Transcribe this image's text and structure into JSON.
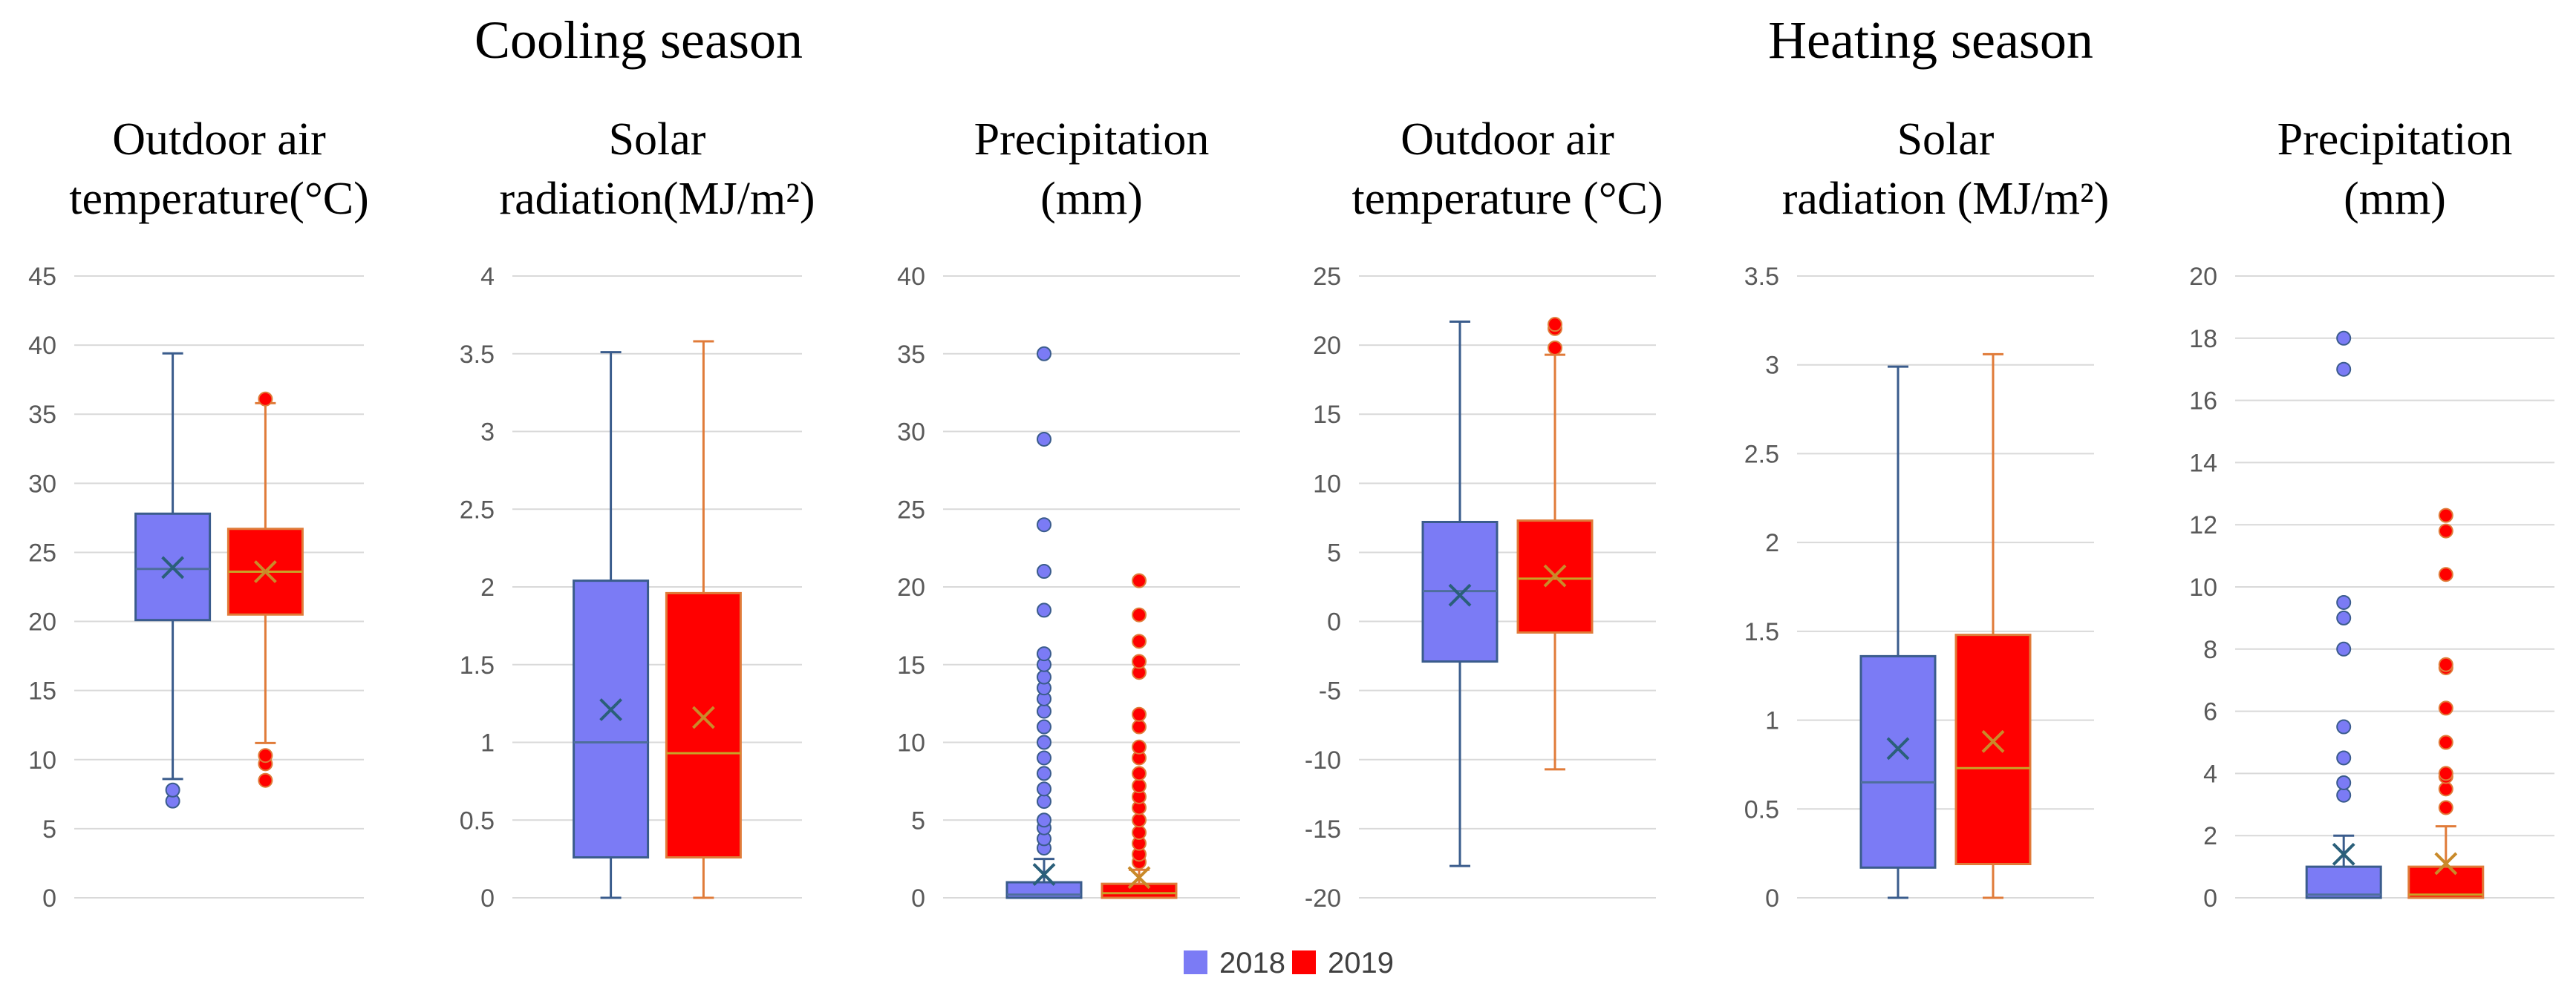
{
  "season_titles": [
    "Cooling season",
    "Heating season"
  ],
  "legend": [
    {
      "label": "2018",
      "color": "#7b7bf5"
    },
    {
      "label": "2019",
      "color": "#ff0000"
    }
  ],
  "colors": {
    "fill_2018": "#7b7bf5",
    "stroke_2018": "#3a5c8c",
    "fill_2019": "#ff0000",
    "stroke_2019": "#e07b39",
    "median_2018": "#4e6e9c",
    "median_2019": "#c9a227"
  },
  "chart_data": [
    {
      "type": "box",
      "season": "Cooling season",
      "title_lines": [
        "Outdoor air",
        "temperature(°C)"
      ],
      "ylim": [
        0,
        45
      ],
      "ticks": [
        0,
        5,
        10,
        15,
        20,
        25,
        30,
        35,
        40,
        45
      ],
      "tick_labels": [
        "0",
        "5",
        "10",
        "15",
        "20",
        "25",
        "30",
        "35",
        "40",
        "45"
      ],
      "series": [
        {
          "name": "2018",
          "whisker_low": 8.6,
          "q1": 20.1,
          "median": 23.8,
          "q3": 27.8,
          "whisker_high": 39.4,
          "mean": 23.9,
          "outliers": [
            7.0,
            7.8
          ]
        },
        {
          "name": "2019",
          "whisker_low": 11.2,
          "q1": 20.5,
          "median": 23.6,
          "q3": 26.7,
          "whisker_high": 35.8,
          "mean": 23.6,
          "outliers": [
            8.5,
            9.7,
            10.3,
            36.1
          ]
        }
      ]
    },
    {
      "type": "box",
      "season": "Cooling season",
      "title_lines": [
        "Solar",
        "radiation(MJ/m²)"
      ],
      "ylim": [
        0,
        4
      ],
      "ticks": [
        0,
        0.5,
        1,
        1.5,
        2,
        2.5,
        3,
        3.5,
        4
      ],
      "tick_labels": [
        "0",
        "0.5",
        "1",
        "1.5",
        "2",
        "2.5",
        "3",
        "3.5",
        "4"
      ],
      "series": [
        {
          "name": "2018",
          "whisker_low": 0,
          "q1": 0.26,
          "median": 1.0,
          "q3": 2.04,
          "whisker_high": 3.51,
          "mean": 1.21,
          "outliers": []
        },
        {
          "name": "2019",
          "whisker_low": 0,
          "q1": 0.26,
          "median": 0.93,
          "q3": 1.96,
          "whisker_high": 3.58,
          "mean": 1.16,
          "outliers": []
        }
      ]
    },
    {
      "type": "box",
      "season": "Cooling season",
      "title_lines": [
        "Precipitation",
        "(mm)"
      ],
      "ylim": [
        0,
        40
      ],
      "ticks": [
        0,
        5,
        10,
        15,
        20,
        25,
        30,
        35,
        40
      ],
      "tick_labels": [
        "0",
        "5",
        "10",
        "15",
        "20",
        "25",
        "30",
        "35",
        "40"
      ],
      "series": [
        {
          "name": "2018",
          "whisker_low": 0,
          "q1": 0,
          "median": 0.2,
          "q3": 1.0,
          "whisker_high": 2.5,
          "mean": 1.5,
          "outliers": [
            3.2,
            3.8,
            4.5,
            5.0,
            6.2,
            7.0,
            8.0,
            9.0,
            10.0,
            11.0,
            12.0,
            12.8,
            13.5,
            14.2,
            15.0,
            15.7,
            18.5,
            21.0,
            24.0,
            29.5,
            35.0
          ]
        },
        {
          "name": "2019",
          "whisker_low": 0,
          "q1": 0,
          "median": 0.3,
          "q3": 0.9,
          "whisker_high": 1.8,
          "mean": 1.3,
          "outliers": [
            2.3,
            2.8,
            3.5,
            4.2,
            5.0,
            5.8,
            6.5,
            7.2,
            8.0,
            9.0,
            9.7,
            11.0,
            11.8,
            14.5,
            15.2,
            16.5,
            18.2,
            20.4
          ]
        }
      ]
    },
    {
      "type": "box",
      "season": "Heating season",
      "title_lines": [
        "Outdoor air",
        "temperature (°C)"
      ],
      "ylim": [
        -20,
        25
      ],
      "ticks": [
        -20,
        -15,
        -10,
        -5,
        0,
        5,
        10,
        15,
        20,
        25
      ],
      "tick_labels": [
        "-20",
        "-15",
        "-10",
        "-5",
        "0",
        "5",
        "10",
        "15",
        "20",
        "25"
      ],
      "series": [
        {
          "name": "2018",
          "whisker_low": -17.7,
          "q1": -2.9,
          "median": 2.2,
          "q3": 7.2,
          "whisker_high": 21.7,
          "mean": 1.9,
          "outliers": []
        },
        {
          "name": "2019",
          "whisker_low": -10.7,
          "q1": -0.8,
          "median": 3.1,
          "q3": 7.3,
          "whisker_high": 19.3,
          "mean": 3.3,
          "outliers": [
            19.8,
            21.2,
            21.5
          ]
        }
      ]
    },
    {
      "type": "box",
      "season": "Heating season",
      "title_lines": [
        "Solar",
        "radiation (MJ/m²)"
      ],
      "ylim": [
        0,
        3.5
      ],
      "ticks": [
        0,
        0.5,
        1,
        1.5,
        2,
        2.5,
        3,
        3.5
      ],
      "tick_labels": [
        "0",
        "0.5",
        "1",
        "1.5",
        "2",
        "2.5",
        "3",
        "3.5"
      ],
      "series": [
        {
          "name": "2018",
          "whisker_low": 0,
          "q1": 0.17,
          "median": 0.65,
          "q3": 1.36,
          "whisker_high": 2.99,
          "mean": 0.84,
          "outliers": []
        },
        {
          "name": "2019",
          "whisker_low": 0,
          "q1": 0.19,
          "median": 0.73,
          "q3": 1.48,
          "whisker_high": 3.06,
          "mean": 0.88,
          "outliers": []
        }
      ]
    },
    {
      "type": "box",
      "season": "Heating season",
      "title_lines": [
        "Precipitation",
        "(mm)"
      ],
      "ylim": [
        0,
        20
      ],
      "ticks": [
        0,
        2,
        4,
        6,
        8,
        10,
        12,
        14,
        16,
        18,
        20
      ],
      "tick_labels": [
        "0",
        "2",
        "4",
        "6",
        "8",
        "10",
        "12",
        "14",
        "16",
        "18",
        "20"
      ],
      "series": [
        {
          "name": "2018",
          "whisker_low": 0,
          "q1": 0,
          "median": 0.1,
          "q3": 1.0,
          "whisker_high": 2.0,
          "mean": 1.4,
          "outliers": [
            3.3,
            3.7,
            4.5,
            5.5,
            8.0,
            9.0,
            9.5,
            17.0,
            18.0
          ]
        },
        {
          "name": "2019",
          "whisker_low": 0,
          "q1": 0,
          "median": 0.1,
          "q3": 1.0,
          "whisker_high": 2.3,
          "mean": 1.1,
          "outliers": [
            2.9,
            3.5,
            3.9,
            4.0,
            5.0,
            6.1,
            7.4,
            7.5,
            10.4,
            11.8,
            12.3
          ]
        }
      ]
    }
  ]
}
